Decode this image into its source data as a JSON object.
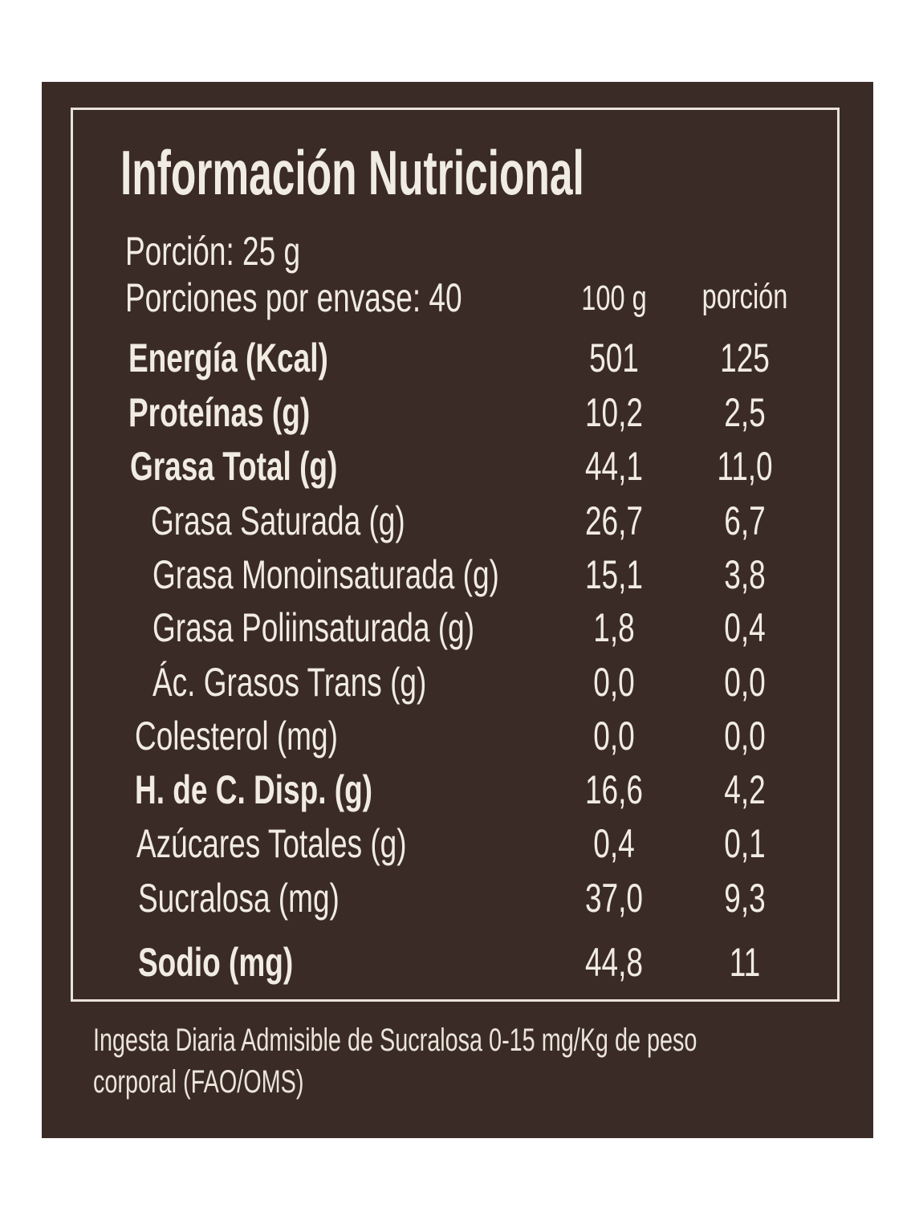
{
  "title": "Información Nutricional",
  "serving": "Porción: 25 g",
  "servings_per_container": "Porciones por envase: 40",
  "columns": [
    "100 g",
    "porción"
  ],
  "rows": [
    {
      "label": "Energía (Kcal)",
      "per100": "501",
      "perServing": "125",
      "bold": true
    },
    {
      "label": "Proteínas (g)",
      "per100": "10,2",
      "perServing": "2,5",
      "bold": true
    },
    {
      "label": "Grasa Total (g)",
      "per100": "44,1",
      "perServing": "11,0",
      "bold": true
    },
    {
      "label": "Grasa Saturada (g)",
      "per100": "26,7",
      "perServing": "6,7",
      "indent": true
    },
    {
      "label": "Grasa Monoinsaturada (g)",
      "per100": "15,1",
      "perServing": "3,8",
      "indent": true
    },
    {
      "label": "Grasa Poliinsaturada (g)",
      "per100": "1,8",
      "perServing": "0,4",
      "indent": true
    },
    {
      "label": "Ác. Grasos Trans (g)",
      "per100": "0,0",
      "perServing": "0,0",
      "indent": true
    },
    {
      "label": "Colesterol (mg)",
      "per100": "0,0",
      "perServing": "0,0"
    },
    {
      "label": "H. de C. Disp. (g)",
      "per100": "16,6",
      "perServing": "4,2",
      "bold": true
    },
    {
      "label": "Azúcares Totales (g)",
      "per100": "0,4",
      "perServing": "0,1"
    },
    {
      "label": "Sucralosa (mg)",
      "per100": "37,0",
      "perServing": "9,3"
    },
    {
      "label": "Sodio (mg)",
      "per100": "44,8",
      "perServing": "11",
      "bold": true
    }
  ],
  "footnote": [
    "Ingesta Diaria Admisible de Sucralosa 0-15 mg/Kg de peso",
    "corporal (FAO/OMS)"
  ],
  "colors": {
    "panel": "#3b2b27",
    "text": "#f1ece2"
  }
}
